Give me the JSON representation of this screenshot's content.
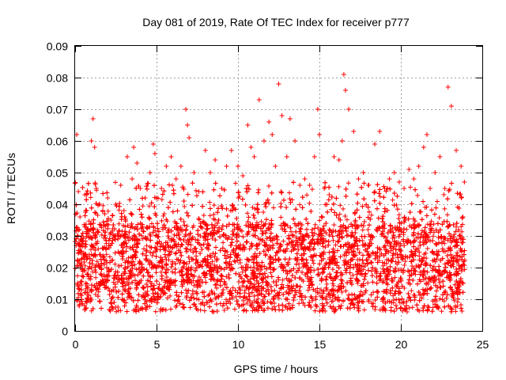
{
  "chart_data": {
    "type": "scatter",
    "title": "Day 081 of 2019, Rate Of TEC Index for receiver p777",
    "xlabel": "GPS time / hours",
    "ylabel": "ROTI / TECUs",
    "xlim": [
      0,
      25
    ],
    "ylim": [
      0,
      0.09
    ],
    "xticks": [
      0,
      5,
      10,
      15,
      20,
      25
    ],
    "xtick_labels": [
      "0",
      "5",
      "10",
      "15",
      "20",
      "25"
    ],
    "yticks": [
      0,
      0.01,
      0.02,
      0.03,
      0.04,
      0.05,
      0.06,
      0.07,
      0.08,
      0.09
    ],
    "ytick_labels": [
      "0",
      "0.01",
      "0.02",
      "0.03",
      "0.04",
      "0.05",
      "0.06",
      "0.07",
      "0.08",
      "0.09"
    ],
    "grid": true,
    "marker": "+",
    "color": "#ff0000",
    "series": [
      {
        "name": "ROTI",
        "points_note": "dense scatter; representative sample points",
        "x": [
          0.1,
          0.2,
          0.3,
          0.4,
          0.5,
          0.6,
          0.7,
          0.8,
          1.0,
          1.1,
          1.2,
          1.3,
          1.5,
          1.7,
          2.0,
          2.2,
          2.5,
          2.8,
          3.0,
          3.2,
          3.5,
          3.6,
          3.8,
          4.0,
          4.3,
          4.6,
          4.8,
          4.9,
          5.0,
          5.3,
          5.6,
          5.9,
          6.2,
          6.5,
          6.8,
          6.9,
          7.0,
          7.3,
          7.6,
          8.0,
          8.3,
          8.6,
          9.0,
          9.3,
          9.6,
          10.0,
          10.3,
          10.6,
          10.8,
          11.0,
          11.3,
          11.6,
          11.9,
          12.1,
          12.3,
          12.5,
          12.7,
          13.0,
          13.2,
          13.5,
          13.8,
          14.1,
          14.4,
          14.7,
          14.9,
          15.0,
          15.3,
          15.6,
          15.9,
          16.2,
          16.4,
          16.5,
          16.6,
          16.8,
          17.1,
          17.4,
          17.7,
          18.0,
          18.4,
          18.7,
          19.0,
          19.3,
          19.6,
          19.9,
          20.2,
          20.5,
          20.8,
          21.1,
          21.4,
          21.6,
          21.8,
          22.1,
          22.4,
          22.7,
          22.9,
          23.1,
          23.4,
          23.7,
          23.9
        ],
        "y": [
          0.062,
          0.044,
          0.036,
          0.03,
          0.024,
          0.043,
          0.038,
          0.032,
          0.06,
          0.067,
          0.058,
          0.045,
          0.04,
          0.038,
          0.042,
          0.035,
          0.04,
          0.046,
          0.038,
          0.055,
          0.048,
          0.058,
          0.053,
          0.045,
          0.042,
          0.05,
          0.059,
          0.056,
          0.042,
          0.045,
          0.052,
          0.055,
          0.048,
          0.052,
          0.07,
          0.065,
          0.061,
          0.05,
          0.044,
          0.057,
          0.05,
          0.054,
          0.045,
          0.052,
          0.057,
          0.052,
          0.049,
          0.065,
          0.058,
          0.055,
          0.073,
          0.06,
          0.066,
          0.062,
          0.052,
          0.078,
          0.068,
          0.055,
          0.067,
          0.06,
          0.046,
          0.048,
          0.046,
          0.055,
          0.07,
          0.062,
          0.045,
          0.043,
          0.055,
          0.054,
          0.06,
          0.081,
          0.076,
          0.07,
          0.063,
          0.048,
          0.05,
          0.046,
          0.059,
          0.063,
          0.045,
          0.048,
          0.05,
          0.047,
          0.045,
          0.051,
          0.048,
          0.052,
          0.058,
          0.062,
          0.045,
          0.05,
          0.055,
          0.045,
          0.077,
          0.071,
          0.057,
          0.052,
          0.047
        ]
      }
    ]
  }
}
